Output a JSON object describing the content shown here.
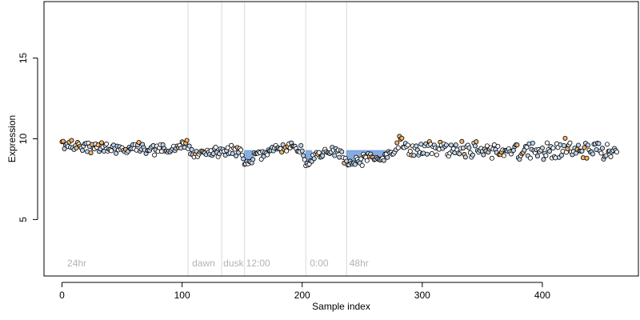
{
  "chart_data": {
    "type": "scatter",
    "title": "",
    "xlabel": "Sample index",
    "ylabel": "Expression",
    "xlim": [
      -15,
      480
    ],
    "ylim": [
      1.5,
      18.5
    ],
    "x_ticks": [
      0,
      100,
      200,
      300,
      400
    ],
    "y_ticks": [
      5,
      10,
      15
    ],
    "grid": false,
    "legend": "none",
    "colors": {
      "point_fill_default": "#bcd3ee",
      "point_fill_high": "#f4b266",
      "point_fill_mid": "#ffffff",
      "point_stroke": "#000000",
      "drop_bar": "#7da7de",
      "separator": "#d9d9d9",
      "baseline": "#444444"
    },
    "baseline": 9.25,
    "region_separators": [
      105,
      133,
      152,
      203,
      237
    ],
    "region_labels": [
      {
        "x": 3,
        "text": "24hr"
      },
      {
        "x": 107,
        "text": "dawn"
      },
      {
        "x": 133,
        "text": "dusk"
      },
      {
        "x": 152,
        "text": "12:00"
      },
      {
        "x": 205,
        "text": "0:00"
      },
      {
        "x": 238,
        "text": "48hr"
      }
    ],
    "highlight_ranges": [
      [
        152,
        180
      ],
      [
        203,
        208
      ],
      [
        237,
        278
      ]
    ],
    "anchors": {
      "x": [
        0,
        10,
        20,
        30,
        40,
        50,
        60,
        70,
        80,
        90,
        95,
        100,
        104,
        110,
        120,
        130,
        140,
        150,
        152,
        155,
        160,
        170,
        180,
        190,
        200,
        203,
        206,
        210,
        220,
        230,
        238,
        245,
        255,
        265,
        275,
        280,
        285,
        295,
        310,
        330,
        350,
        370,
        390,
        410,
        430,
        450,
        462
      ],
      "y": [
        9.65,
        9.55,
        9.55,
        9.5,
        9.4,
        9.4,
        9.45,
        9.45,
        9.45,
        9.3,
        9.3,
        9.7,
        9.55,
        9.1,
        9.15,
        9.15,
        9.2,
        9.2,
        8.2,
        8.7,
        8.9,
        9.1,
        9.3,
        9.55,
        9.3,
        8.3,
        8.5,
        9.0,
        9.2,
        9.2,
        8.5,
        8.7,
        8.8,
        8.8,
        9.0,
        9.5,
        9.55,
        9.6,
        9.5,
        9.4,
        9.3,
        9.3,
        9.2,
        9.35,
        9.45,
        9.25,
        9.3
      ]
    }
  }
}
